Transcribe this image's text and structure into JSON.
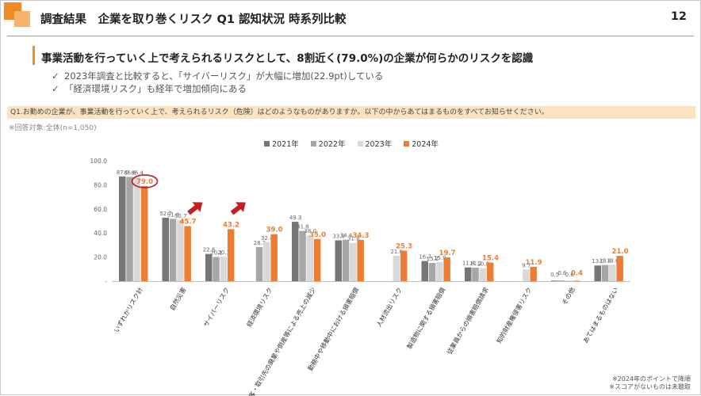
{
  "header": {
    "title": "調査結果　企業を取り巻くリスク Q1 認知状況 時系列比較",
    "page_number": "12"
  },
  "headline": "事業活動を行っていく上で考えられるリスクとして、8割近く(79.0%)の企業が何らかのリスクを認識",
  "bullets": [
    "2023年調査と比較すると、「サイバーリスク」が大幅に増加(22.9pt)している",
    "「経済環境リスク」も経年で増加傾向にある"
  ],
  "question": "Q1.お勤めの企業が、事業活動を行っていく上で、考えられるリスク（危険）はどのようなものがありますか。以下の中からあてはまるものをすべてお知らせください。",
  "respondents": "※回答対象:全体(n=1,050)",
  "footnotes": [
    "※2024年のポイントで降順",
    "※スコアがないものは未聴取"
  ],
  "colors": {
    "y2021": "#767676",
    "y2022": "#a6a6a6",
    "y2023": "#d9d9d9",
    "y2024": "#ed7d31",
    "accent": "#ed7d31",
    "circle": "#b01f24",
    "arrow": "#c0221f"
  },
  "chart_data": {
    "type": "bar",
    "ylim": [
      0,
      100
    ],
    "yticks": [
      "100.0",
      "80.0",
      "60.0",
      "40.0",
      "20.0",
      "-"
    ],
    "categories": [
      "いずれかリスク計",
      "自然災害",
      "サイバーリスク",
      "経済環境リスク",
      "顧客・取引先の廃業や倒産等による売上の減少",
      "勤務中や移動中における損害賠償",
      "人材流出リスク",
      "製造物に関する損害賠償",
      "従業員からの損害賠償請求",
      "知的財産権侵害リスク",
      "その他",
      "あてはまるものはない"
    ],
    "series": [
      {
        "name": "2021年",
        "values": [
          87.0,
          52.7,
          22.6,
          null,
          49.3,
          33.9,
          null,
          16.7,
          11.4,
          null,
          0.5,
          13.0
        ],
        "labels": [
          "87.0",
          "52.7",
          "22.6",
          "",
          "49.3",
          "33.9",
          "",
          "16.7",
          "11.4",
          "",
          "0.5",
          "13.0"
        ]
      },
      {
        "name": "2022年",
        "values": [
          86.6,
          51.8,
          20.1,
          28.3,
          41.8,
          34.4,
          null,
          15.2,
          11.2,
          null,
          0.6,
          13.4
        ],
        "labels": [
          "86.6",
          "51.8",
          "20.1",
          "28.3",
          "41.8",
          "34.4",
          "",
          "15.2",
          "11.2",
          "",
          "0.6",
          "13.4"
        ]
      },
      {
        "name": "2023年",
        "values": [
          86.4,
          50.7,
          20.3,
          32.4,
          38.0,
          31.8,
          21.0,
          15.9,
          10.8,
          9.7,
          0.6,
          13.6
        ],
        "labels": [
          "86.4",
          "50.7",
          "20.3",
          "32.4",
          "38.0",
          "31.8",
          "21.0",
          "15.9",
          "10.8",
          "9.7",
          "0.6",
          "13.6"
        ]
      },
      {
        "name": "2024年",
        "values": [
          79.0,
          45.7,
          43.2,
          39.0,
          35.0,
          34.3,
          25.3,
          19.7,
          15.4,
          11.9,
          0.4,
          21.0
        ],
        "labels": [
          "79.0",
          "45.7",
          "43.2",
          "39.0",
          "35.0",
          "34.3",
          "25.3",
          "19.7",
          "15.4",
          "11.9",
          "0.4",
          "21.0"
        ]
      }
    ],
    "legend_position": "top-center",
    "highlight": {
      "category_index": 0,
      "series_index": 3,
      "shape": "circle"
    },
    "trend_arrows": [
      2,
      3
    ]
  }
}
